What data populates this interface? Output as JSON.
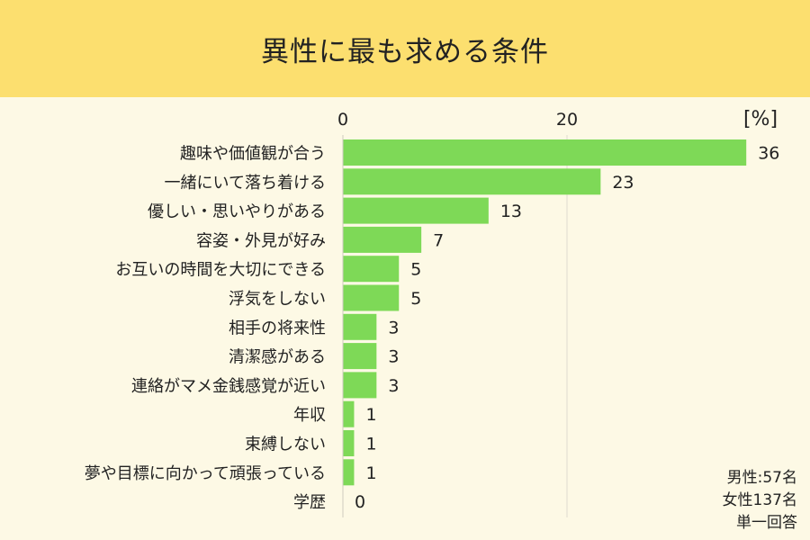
{
  "header": {
    "title": "異性に最も求める条件"
  },
  "chart_data": {
    "type": "bar",
    "orientation": "horizontal",
    "title": "異性に最も求める条件",
    "unit": "[%]",
    "xlim": [
      0,
      40
    ],
    "xticks": [
      0,
      20
    ],
    "grid": true,
    "bar_color": "#7ed957",
    "categories": [
      "趣味や価値観が合う",
      "一緒にいて落ち着ける",
      "優しい・思いやりがある",
      "容姿・外見が好み",
      "お互いの時間を大切にできる",
      "浮気をしない",
      "相手の将来性",
      "清潔感がある",
      "連絡がマメ金銭感覚が近い",
      "年収",
      "束縛しない",
      "夢や目標に向かって頑張っている",
      "学歴"
    ],
    "values": [
      36,
      23,
      13,
      7,
      5,
      5,
      3,
      3,
      3,
      1,
      1,
      1,
      0
    ]
  },
  "note": {
    "male": "男性:57名",
    "female": "女性137名",
    "method": "単一回答"
  }
}
